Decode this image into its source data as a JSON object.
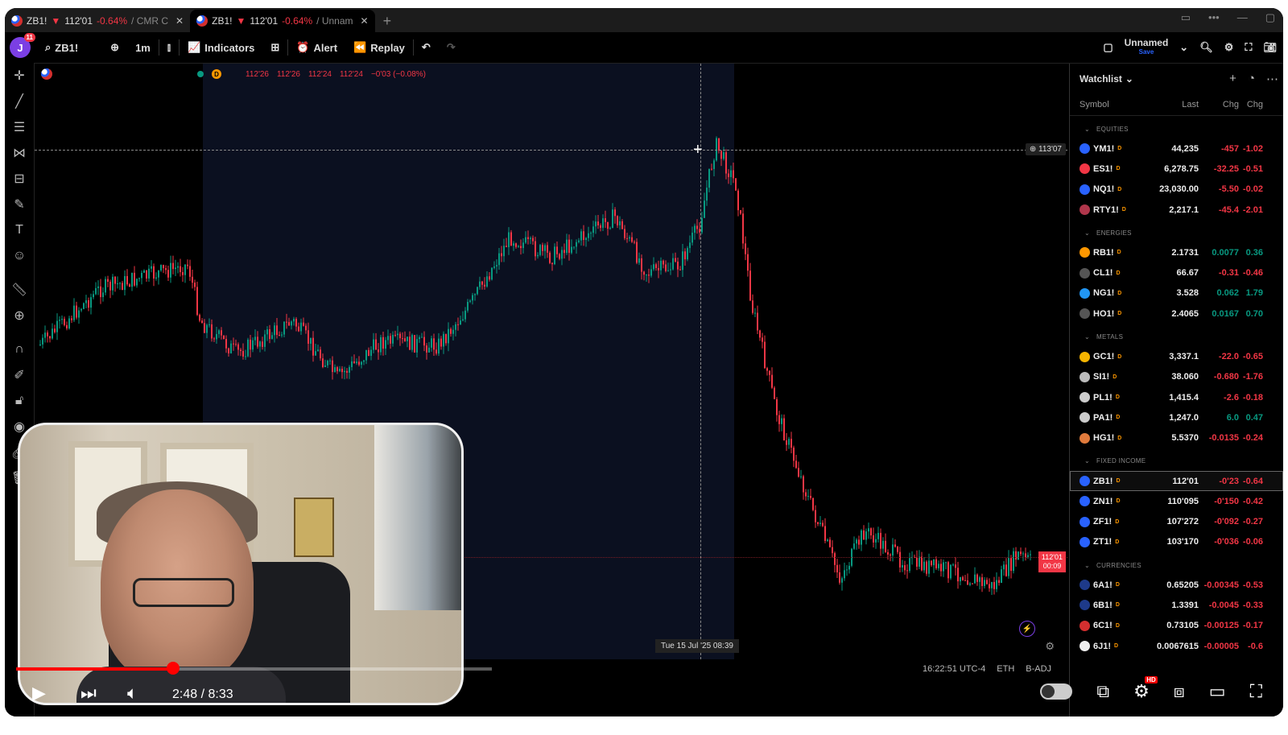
{
  "tabs": [
    {
      "symbol": "ZB1!",
      "arrow": "▼",
      "price": "112'01",
      "change": "-0.64%",
      "rest": "/ CMR C"
    },
    {
      "symbol": "ZB1!",
      "arrow": "▼",
      "price": "112'01",
      "change": "-0.64%",
      "rest": "/ Unnam"
    }
  ],
  "toolbar": {
    "avatar": "J",
    "badge": "11",
    "search": "ZB1!",
    "interval": "1m",
    "indicators": "Indicators",
    "alert": "Alert",
    "replay": "Replay",
    "layout_name": "Unnamed",
    "layout_sub": "Save"
  },
  "legend": {
    "interval_badge": "D",
    "open": "112'26",
    "high": "112'26",
    "low": "112'24",
    "close": "112'24",
    "change": "−0'03 (−0.08%)"
  },
  "chart": {
    "crosshair_price": "113'07",
    "last_price": "112'01",
    "last_countdown": "00:09",
    "crosshair_time": "Tue 15 Jul '25   08:39",
    "colors": {
      "up": "#089981",
      "down": "#f23645"
    }
  },
  "watchlist": {
    "title": "Watchlist",
    "columns": [
      "Symbol",
      "Last",
      "Chg",
      "Chg"
    ],
    "sections": [
      {
        "name": "EQUITIES",
        "rows": [
          {
            "sym": "YM1!",
            "last": "44,235",
            "chg": "-457",
            "pct": "-1.02",
            "color": "#2962ff"
          },
          {
            "sym": "ES1!",
            "last": "6,278.75",
            "chg": "-32.25",
            "pct": "-0.51",
            "color": "#f23645"
          },
          {
            "sym": "NQ1!",
            "last": "23,030.00",
            "chg": "-5.50",
            "pct": "-0.02",
            "color": "#2962ff"
          },
          {
            "sym": "RTY1!",
            "last": "2,217.1",
            "chg": "-45.4",
            "pct": "-2.01",
            "color": "#b0364b"
          }
        ]
      },
      {
        "name": "ENERGIES",
        "rows": [
          {
            "sym": "RB1!",
            "last": "2.1731",
            "chg": "0.0077",
            "pct": "0.36",
            "color": "#ff9800"
          },
          {
            "sym": "CL1!",
            "last": "66.67",
            "chg": "-0.31",
            "pct": "-0.46",
            "color": "#555555"
          },
          {
            "sym": "NG1!",
            "last": "3.528",
            "chg": "0.062",
            "pct": "1.79",
            "color": "#2196f3"
          },
          {
            "sym": "HO1!",
            "last": "2.4065",
            "chg": "0.0167",
            "pct": "0.70",
            "color": "#555555"
          }
        ]
      },
      {
        "name": "METALS",
        "rows": [
          {
            "sym": "GC1!",
            "last": "3,337.1",
            "chg": "-22.0",
            "pct": "-0.65",
            "color": "#f5b400"
          },
          {
            "sym": "SI1!",
            "last": "38.060",
            "chg": "-0.680",
            "pct": "-1.76",
            "color": "#bbbbbb"
          },
          {
            "sym": "PL1!",
            "last": "1,415.4",
            "chg": "-2.6",
            "pct": "-0.18",
            "color": "#cccccc"
          },
          {
            "sym": "PA1!",
            "last": "1,247.0",
            "chg": "6.0",
            "pct": "0.47",
            "color": "#cccccc"
          },
          {
            "sym": "HG1!",
            "last": "5.5370",
            "chg": "-0.0135",
            "pct": "-0.24",
            "color": "#e07a3c"
          }
        ]
      },
      {
        "name": "FIXED INCOME",
        "rows": [
          {
            "sym": "ZB1!",
            "last": "112'01",
            "chg": "-0'23",
            "pct": "-0.64",
            "color": "#2962ff",
            "selected": true
          },
          {
            "sym": "ZN1!",
            "last": "110'095",
            "chg": "-0'150",
            "pct": "-0.42",
            "color": "#2962ff"
          },
          {
            "sym": "ZF1!",
            "last": "107'272",
            "chg": "-0'092",
            "pct": "-0.27",
            "color": "#2962ff"
          },
          {
            "sym": "ZT1!",
            "last": "103'170",
            "chg": "-0'036",
            "pct": "-0.06",
            "color": "#2962ff"
          }
        ]
      },
      {
        "name": "CURRENCIES",
        "rows": [
          {
            "sym": "6A1!",
            "last": "0.65205",
            "chg": "-0.00345",
            "pct": "-0.53",
            "color": "#1e3a8a"
          },
          {
            "sym": "6B1!",
            "last": "1.3391",
            "chg": "-0.0045",
            "pct": "-0.33",
            "color": "#1e3a8a"
          },
          {
            "sym": "6C1!",
            "last": "0.73105",
            "chg": "-0.00125",
            "pct": "-0.17",
            "color": "#d32f2f"
          },
          {
            "sym": "6J1!",
            "last": "0.0067615",
            "chg": "-0.00005",
            "pct": "-0.6",
            "color": "#eeeeee"
          }
        ]
      }
    ]
  },
  "status": {
    "time": "16:22:51 UTC-4",
    "session": "ETH",
    "adj": "B-ADJ"
  },
  "video": {
    "current": "2:48",
    "duration": "8:33",
    "progress": 0.33,
    "buffered": 0.35,
    "hd": "HD"
  }
}
